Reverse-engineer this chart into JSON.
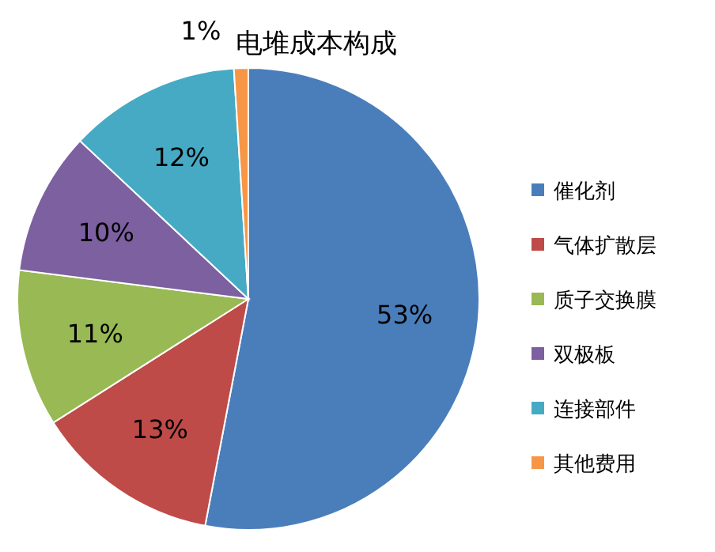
{
  "chart_data": {
    "type": "pie",
    "title": "电堆成本构成",
    "categories": [
      "催化剂",
      "气体扩散层",
      "质子交换膜",
      "双极板",
      "连接部件",
      "其他费用"
    ],
    "values": [
      53,
      13,
      11,
      10,
      12,
      1
    ],
    "value_labels": [
      "53%",
      "13%",
      "11%",
      "10%",
      "12%",
      "1%"
    ],
    "colors": [
      "#4a7ebb",
      "#be4b48",
      "#98b954",
      "#7d60a0",
      "#46aac5",
      "#f79646"
    ],
    "legend": "right"
  }
}
